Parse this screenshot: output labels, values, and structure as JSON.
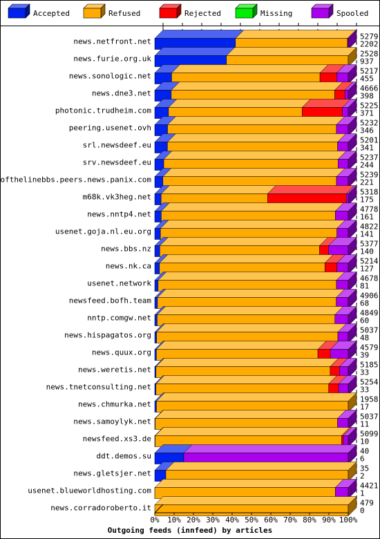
{
  "chart_data": {
    "type": "bar",
    "title": "",
    "xlabel": "Outgoing feeds (innfeed) by articles",
    "ylabel": "",
    "xlim": [
      0,
      100
    ],
    "x_ticks": [
      "0%",
      "10%",
      "20%",
      "30%",
      "40%",
      "50%",
      "60%",
      "70%",
      "80%",
      "90%",
      "100%"
    ],
    "legend_position": "top",
    "series": [
      {
        "name": "Accepted",
        "color": "#0022ee"
      },
      {
        "name": "Refused",
        "color": "#ffaa00"
      },
      {
        "name": "Rejected",
        "color": "#ff0000"
      },
      {
        "name": "Missing",
        "color": "#00ee00"
      },
      {
        "name": "Spooled",
        "color": "#aa00ee"
      }
    ],
    "rows": [
      {
        "label": "news.netfront.net",
        "total": 5279,
        "accepted": 2202,
        "refused": 3057,
        "rejected": 0,
        "missing": 0,
        "spooled": 20
      },
      {
        "label": "news.furie.org.uk",
        "total": 2528,
        "accepted": 937,
        "refused": 1591,
        "rejected": 0,
        "missing": 0,
        "spooled": 0
      },
      {
        "label": "news.sonologic.net",
        "total": 5217,
        "accepted": 455,
        "refused": 4000,
        "rejected": 450,
        "missing": 0,
        "spooled": 312
      },
      {
        "label": "news.dne3.net",
        "total": 4666,
        "accepted": 398,
        "refused": 3941,
        "rejected": 247,
        "missing": 0,
        "spooled": 80
      },
      {
        "label": "photonic.trudheim.com",
        "total": 5225,
        "accepted": 371,
        "refused": 3611,
        "rejected": 1085,
        "missing": 0,
        "spooled": 158
      },
      {
        "label": "peering.usenet.ovh",
        "total": 5232,
        "accepted": 346,
        "refused": 4566,
        "rejected": 0,
        "missing": 0,
        "spooled": 320
      },
      {
        "label": "srl.newsdeef.eu",
        "total": 5201,
        "accepted": 341,
        "refused": 4574,
        "rejected": 0,
        "missing": 0,
        "spooled": 286
      },
      {
        "label": "srv.newsdeef.eu",
        "total": 5237,
        "accepted": 244,
        "refused": 4718,
        "rejected": 0,
        "missing": 0,
        "spooled": 275
      },
      {
        "label": "endofthelinebbs.peers.news.panix.com",
        "total": 5239,
        "accepted": 221,
        "refused": 4700,
        "rejected": 0,
        "missing": 0,
        "spooled": 318
      },
      {
        "label": "m68k.vk3heg.net",
        "total": 5318,
        "accepted": 175,
        "refused": 2926,
        "rejected": 2164,
        "missing": 0,
        "spooled": 53
      },
      {
        "label": "news.nntp4.net",
        "total": 4778,
        "accepted": 161,
        "refused": 4299,
        "rejected": 0,
        "missing": 0,
        "spooled": 318
      },
      {
        "label": "usenet.goja.nl.eu.org",
        "total": 4822,
        "accepted": 141,
        "refused": 4399,
        "rejected": 0,
        "missing": 0,
        "spooled": 282
      },
      {
        "label": "news.bbs.nz",
        "total": 5377,
        "accepted": 140,
        "refused": 4440,
        "rejected": 250,
        "missing": 0,
        "spooled": 547
      },
      {
        "label": "news.nk.ca",
        "total": 5214,
        "accepted": 127,
        "refused": 4458,
        "rejected": 325,
        "missing": 0,
        "spooled": 304
      },
      {
        "label": "usenet.network",
        "total": 4678,
        "accepted": 81,
        "refused": 4312,
        "rejected": 0,
        "missing": 0,
        "spooled": 285
      },
      {
        "label": "newsfeed.bofh.team",
        "total": 4906,
        "accepted": 68,
        "refused": 4534,
        "rejected": 0,
        "missing": 0,
        "spooled": 304
      },
      {
        "label": "nntp.comgw.net",
        "total": 4849,
        "accepted": 60,
        "refused": 4455,
        "rejected": 0,
        "missing": 0,
        "spooled": 334
      },
      {
        "label": "news.hispagatos.org",
        "total": 5037,
        "accepted": 48,
        "refused": 4719,
        "rejected": 0,
        "missing": 0,
        "spooled": 270
      },
      {
        "label": "news.quux.org",
        "total": 4579,
        "accepted": 39,
        "refused": 3822,
        "rejected": 295,
        "missing": 0,
        "spooled": 423
      },
      {
        "label": "news.weretis.net",
        "total": 5185,
        "accepted": 33,
        "refused": 4668,
        "rejected": 250,
        "missing": 0,
        "spooled": 234
      },
      {
        "label": "news.tnetconsulting.net",
        "total": 5254,
        "accepted": 33,
        "refused": 4690,
        "rejected": 270,
        "missing": 0,
        "spooled": 261
      },
      {
        "label": "news.chmurka.net",
        "total": 1958,
        "accepted": 17,
        "refused": 1941,
        "rejected": 0,
        "missing": 0,
        "spooled": 0
      },
      {
        "label": "news.samoylyk.net",
        "total": 5037,
        "accepted": 11,
        "refused": 4748,
        "rejected": 0,
        "missing": 0,
        "spooled": 278
      },
      {
        "label": "newsfeed.xs3.de",
        "total": 5099,
        "accepted": 10,
        "refused": 4913,
        "rejected": 50,
        "missing": 0,
        "spooled": 126
      },
      {
        "label": "ddt.demos.su",
        "total": 40,
        "accepted": 6,
        "refused": 0,
        "rejected": 0,
        "missing": 0,
        "spooled": 34
      },
      {
        "label": "news.gletsjer.net",
        "total": 35,
        "accepted": 2,
        "refused": 33,
        "rejected": 0,
        "missing": 0,
        "spooled": 0
      },
      {
        "label": "usenet.blueworldhosting.com",
        "total": 4421,
        "accepted": 1,
        "refused": 4126,
        "rejected": 0,
        "missing": 0,
        "spooled": 294
      },
      {
        "label": "news.corradoroberto.it",
        "total": 479,
        "accepted": 0,
        "refused": 479,
        "rejected": 0,
        "missing": 0,
        "spooled": 0
      }
    ]
  }
}
